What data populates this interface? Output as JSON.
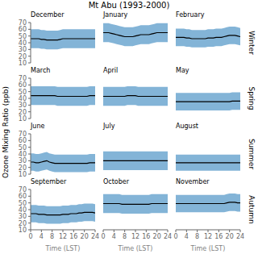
{
  "title": "Mt Abu (1993-2000)",
  "ylabel": "Ozone Mixing Ratio (ppb)",
  "chart_data": [
    {
      "type": "line",
      "title": "December",
      "x": [
        0,
        1,
        2,
        3,
        4,
        5,
        6,
        7,
        8,
        9,
        10,
        11,
        12,
        13,
        14,
        15,
        16,
        17,
        18,
        19,
        20,
        21,
        22,
        23,
        24
      ],
      "values": [
        46,
        46,
        46,
        46,
        45,
        45,
        44,
        44,
        44,
        44,
        44,
        45,
        46,
        46,
        46,
        46,
        46,
        46,
        46,
        46,
        46,
        46,
        46,
        46,
        46
      ],
      "error": 14,
      "color": "#000000",
      "xlim": [
        0,
        24
      ],
      "ylim": [
        10,
        70
      ],
      "xticks": [
        0,
        4,
        8,
        12,
        16,
        20,
        24
      ],
      "yticks": [
        10,
        20,
        30,
        40,
        50,
        60,
        70
      ],
      "tick_labels": "y"
    },
    {
      "type": "line",
      "title": "January",
      "x": [
        0,
        1,
        2,
        3,
        4,
        5,
        6,
        7,
        8,
        9,
        10,
        11,
        12,
        13,
        14,
        15,
        16,
        17,
        18,
        19,
        20,
        21,
        22,
        23,
        24
      ],
      "values": [
        55,
        55,
        55,
        54,
        53,
        52,
        51,
        50,
        49,
        49,
        49,
        49,
        50,
        51,
        52,
        52,
        52,
        52,
        53,
        54,
        55,
        55,
        55,
        55,
        55
      ],
      "error": 14,
      "color": "#000000",
      "xlim": [
        0,
        24
      ],
      "ylim": [
        10,
        70
      ],
      "xticks": [
        0,
        4,
        8,
        12,
        16,
        20,
        24
      ],
      "yticks": [
        10,
        20,
        30,
        40,
        50,
        60,
        70
      ],
      "tick_labels": false
    },
    {
      "type": "line",
      "title": "February",
      "x": [
        0,
        1,
        2,
        3,
        4,
        5,
        6,
        7,
        8,
        9,
        10,
        11,
        12,
        13,
        14,
        15,
        16,
        17,
        18,
        19,
        20,
        21,
        22,
        23,
        24
      ],
      "values": [
        48,
        48,
        48,
        48,
        47,
        47,
        46,
        46,
        46,
        46,
        46,
        46,
        47,
        47,
        47,
        48,
        48,
        48,
        49,
        50,
        51,
        51,
        51,
        50,
        49
      ],
      "error": 13,
      "color": "#000000",
      "xlim": [
        0,
        24
      ],
      "ylim": [
        10,
        70
      ],
      "xticks": [
        0,
        4,
        8,
        12,
        16,
        20,
        24
      ],
      "yticks": [
        10,
        20,
        30,
        40,
        50,
        60,
        70
      ],
      "tick_labels": false,
      "annotations": [
        "Winter"
      ]
    },
    {
      "type": "line",
      "title": "March",
      "x": [
        0,
        1,
        2,
        3,
        4,
        5,
        6,
        7,
        8,
        9,
        10,
        11,
        12,
        13,
        14,
        15,
        16,
        17,
        18,
        19,
        20,
        21,
        22,
        23,
        24
      ],
      "values": [
        44,
        44,
        44,
        44,
        44,
        44,
        44,
        44,
        44,
        44,
        43,
        43,
        43,
        43,
        43,
        43,
        43,
        43,
        43,
        43,
        43,
        43,
        44,
        44,
        44
      ],
      "error": 14,
      "color": "#000000",
      "xlim": [
        0,
        24
      ],
      "ylim": [
        10,
        70
      ],
      "xticks": [
        0,
        4,
        8,
        12,
        16,
        20,
        24
      ],
      "yticks": [
        10,
        20,
        30,
        40,
        50,
        60,
        70
      ],
      "tick_labels": "y"
    },
    {
      "type": "line",
      "title": "April",
      "x": [
        0,
        1,
        2,
        3,
        4,
        5,
        6,
        7,
        8,
        9,
        10,
        11,
        12,
        13,
        14,
        15,
        16,
        17,
        18,
        19,
        20,
        21,
        22,
        23,
        24
      ],
      "values": [
        43,
        43,
        43,
        43,
        43,
        43,
        43,
        43,
        43,
        44,
        44,
        44,
        44,
        43,
        43,
        43,
        43,
        43,
        43,
        43,
        43,
        43,
        43,
        43,
        43
      ],
      "error": 14,
      "color": "#000000",
      "xlim": [
        0,
        24
      ],
      "ylim": [
        10,
        70
      ],
      "xticks": [
        0,
        4,
        8,
        12,
        16,
        20,
        24
      ],
      "yticks": [
        10,
        20,
        30,
        40,
        50,
        60,
        70
      ],
      "tick_labels": false
    },
    {
      "type": "line",
      "title": "May",
      "x": [
        0,
        1,
        2,
        3,
        4,
        5,
        6,
        7,
        8,
        9,
        10,
        11,
        12,
        13,
        14,
        15,
        16,
        17,
        18,
        19,
        20,
        21,
        22,
        23,
        24
      ],
      "values": [
        35,
        35,
        35,
        35,
        35,
        35,
        35,
        35,
        35,
        35,
        35,
        35,
        35,
        35,
        35,
        35,
        35,
        35,
        35,
        35,
        35,
        36,
        36,
        36,
        36
      ],
      "error": 13,
      "color": "#000000",
      "xlim": [
        0,
        24
      ],
      "ylim": [
        10,
        70
      ],
      "xticks": [
        0,
        4,
        8,
        12,
        16,
        20,
        24
      ],
      "yticks": [
        10,
        20,
        30,
        40,
        50,
        60,
        70
      ],
      "tick_labels": false,
      "annotations": [
        "Spring"
      ]
    },
    {
      "type": "line",
      "title": "June",
      "x": [
        0,
        1,
        2,
        3,
        4,
        5,
        6,
        7,
        8,
        9,
        10,
        11,
        12,
        13,
        14,
        15,
        16,
        17,
        18,
        19,
        20,
        21,
        22,
        23,
        24
      ],
      "values": [
        28,
        28,
        27,
        27,
        28,
        29,
        30,
        28,
        27,
        26,
        26,
        26,
        26,
        26,
        26,
        26,
        26,
        26,
        26,
        26,
        26,
        26,
        27,
        27,
        27
      ],
      "error": 13,
      "color": "#000000",
      "xlim": [
        0,
        24
      ],
      "ylim": [
        10,
        70
      ],
      "xticks": [
        0,
        4,
        8,
        12,
        16,
        20,
        24
      ],
      "yticks": [
        10,
        20,
        30,
        40,
        50,
        60,
        70
      ],
      "tick_labels": "y"
    },
    {
      "type": "line",
      "title": "July",
      "x": [
        0,
        1,
        2,
        3,
        4,
        5,
        6,
        7,
        8,
        9,
        10,
        11,
        12,
        13,
        14,
        15,
        16,
        17,
        18,
        19,
        20,
        21,
        22,
        23,
        24
      ],
      "values": [
        30,
        30,
        30,
        30,
        30,
        30,
        30,
        30,
        30,
        30,
        30,
        30,
        30,
        30,
        30,
        30,
        30,
        30,
        30,
        30,
        30,
        30,
        30,
        30,
        30
      ],
      "error": 14,
      "color": "#000000",
      "xlim": [
        0,
        24
      ],
      "ylim": [
        10,
        70
      ],
      "xticks": [
        0,
        4,
        8,
        12,
        16,
        20,
        24
      ],
      "yticks": [
        10,
        20,
        30,
        40,
        50,
        60,
        70
      ],
      "tick_labels": false
    },
    {
      "type": "line",
      "title": "August",
      "x": [
        0,
        1,
        2,
        3,
        4,
        5,
        6,
        7,
        8,
        9,
        10,
        11,
        12,
        13,
        14,
        15,
        16,
        17,
        18,
        19,
        20,
        21,
        22,
        23,
        24
      ],
      "values": [
        27,
        27,
        27,
        27,
        27,
        27,
        27,
        27,
        27,
        27,
        27,
        27,
        27,
        27,
        27,
        27,
        27,
        27,
        27,
        27,
        27,
        27,
        27,
        27,
        27
      ],
      "error": 12,
      "color": "#000000",
      "xlim": [
        0,
        24
      ],
      "ylim": [
        10,
        70
      ],
      "xticks": [
        0,
        4,
        8,
        12,
        16,
        20,
        24
      ],
      "yticks": [
        10,
        20,
        30,
        40,
        50,
        60,
        70
      ],
      "tick_labels": false,
      "annotations": [
        "Summer"
      ]
    },
    {
      "type": "line",
      "title": "September",
      "x": [
        0,
        1,
        2,
        3,
        4,
        5,
        6,
        7,
        8,
        9,
        10,
        11,
        12,
        13,
        14,
        15,
        16,
        17,
        18,
        19,
        20,
        21,
        22,
        23,
        24
      ],
      "values": [
        34,
        34,
        34,
        33,
        33,
        33,
        32,
        32,
        32,
        32,
        32,
        32,
        33,
        33,
        33,
        34,
        34,
        34,
        35,
        35,
        36,
        36,
        36,
        36,
        35
      ],
      "error": 13,
      "color": "#000000",
      "xlim": [
        0,
        24
      ],
      "ylim": [
        10,
        70
      ],
      "xticks": [
        0,
        4,
        8,
        12,
        16,
        20,
        24
      ],
      "yticks": [
        10,
        20,
        30,
        40,
        50,
        60,
        70
      ],
      "xlabel": "Time (LST)"
    },
    {
      "type": "line",
      "title": "October",
      "x": [
        0,
        1,
        2,
        3,
        4,
        5,
        6,
        7,
        8,
        9,
        10,
        11,
        12,
        13,
        14,
        15,
        16,
        17,
        18,
        19,
        20,
        21,
        22,
        23,
        24
      ],
      "values": [
        49,
        49,
        49,
        49,
        49,
        49,
        49,
        48,
        48,
        48,
        48,
        48,
        48,
        48,
        48,
        48,
        48,
        48,
        49,
        49,
        49,
        49,
        49,
        49,
        49
      ],
      "error": 14,
      "color": "#000000",
      "xlim": [
        0,
        24
      ],
      "ylim": [
        10,
        70
      ],
      "xticks": [
        0,
        4,
        8,
        12,
        16,
        20,
        24
      ],
      "yticks": [
        10,
        20,
        30,
        40,
        50,
        60,
        70
      ],
      "tick_labels": "x",
      "xlabel": "Time (LST)"
    },
    {
      "type": "line",
      "title": "November",
      "x": [
        0,
        1,
        2,
        3,
        4,
        5,
        6,
        7,
        8,
        9,
        10,
        11,
        12,
        13,
        14,
        15,
        16,
        17,
        18,
        19,
        20,
        21,
        22,
        23,
        24
      ],
      "values": [
        49,
        49,
        49,
        49,
        49,
        49,
        49,
        49,
        49,
        49,
        49,
        49,
        49,
        49,
        49,
        49,
        49,
        49,
        49,
        50,
        51,
        51,
        51,
        50,
        50
      ],
      "error": 13,
      "color": "#000000",
      "xlim": [
        0,
        24
      ],
      "ylim": [
        10,
        70
      ],
      "xticks": [
        0,
        4,
        8,
        12,
        16,
        20,
        24
      ],
      "yticks": [
        10,
        20,
        30,
        40,
        50,
        60,
        70
      ],
      "tick_labels": "x",
      "xlabel": "Time (LST)",
      "annotations": [
        "Autumn"
      ]
    }
  ]
}
